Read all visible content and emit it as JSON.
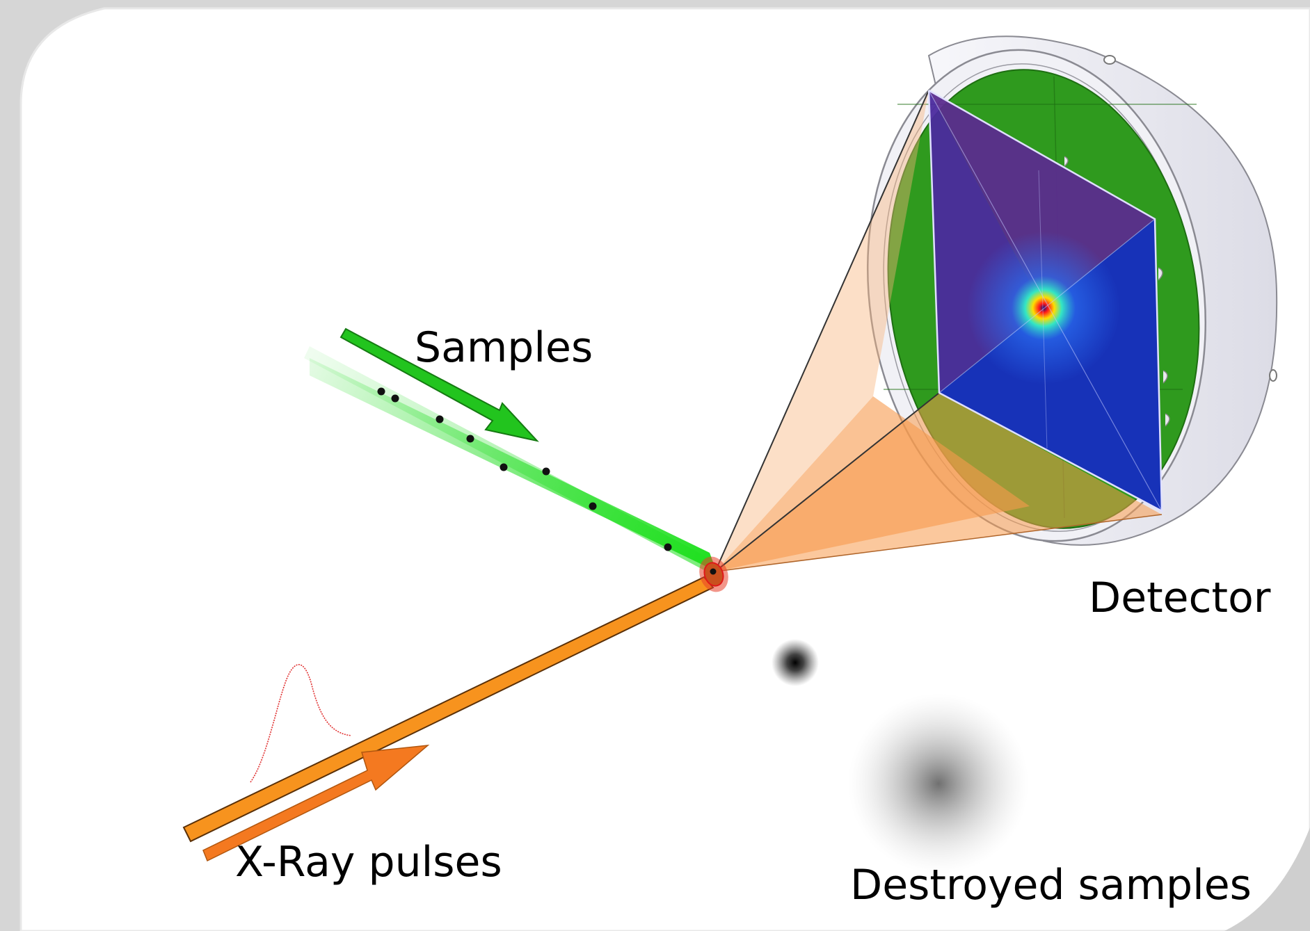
{
  "labels": {
    "samples": "Samples",
    "detector": "Detector",
    "xray": "X-Ray pulses",
    "destroyed": "Destroyed samples"
  },
  "colors": {
    "page_bg": "#d6d6d6",
    "panel_bg": "#ffffff",
    "sample_stream": "#22dd22",
    "sample_arrow": "#22c41e",
    "xray_beam": "#f7931e",
    "xray_arrow": "#f47920",
    "scatter_cone": "#f8a866",
    "interaction_point": "#e8402a",
    "detector_housing": "#eeeef4",
    "detector_board": "#2f9a1e",
    "pattern_upper": "#5b2c8e",
    "pattern_lower": "#1732b8",
    "pulse_curve": "#e03030"
  },
  "icons": {
    "sample_particle": "particle-dot",
    "pulse": "gaussian-pulse",
    "detector": "detector-cylinder"
  }
}
